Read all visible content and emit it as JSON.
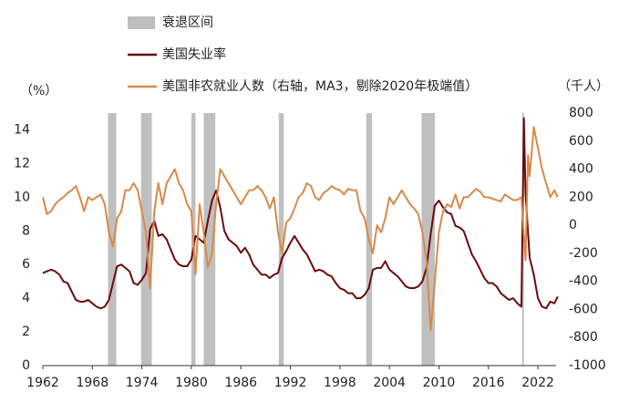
{
  "chart_data": {
    "type": "line",
    "legend": {
      "recession": "衰退区间"
    },
    "ylabel": "（%）",
    "y2label": "（千人）",
    "recessions": [
      [
        1969.9,
        1970.9
      ],
      [
        1973.9,
        1975.2
      ],
      [
        1980.0,
        1980.5
      ],
      [
        1981.5,
        1982.9
      ],
      [
        1990.6,
        1991.2
      ],
      [
        2001.2,
        2001.9
      ],
      [
        2007.9,
        2009.5
      ],
      [
        2020.1,
        2020.3
      ]
    ],
    "recession_color": "#bfbfbf",
    "xlim": [
      1962,
      2024.2
    ],
    "xticks": [
      1962,
      1968,
      1974,
      1980,
      1986,
      1992,
      1998,
      2004,
      2010,
      2016,
      2022
    ],
    "ylim": [
      0,
      15
    ],
    "yticks": [
      0,
      2,
      4,
      6,
      8,
      10,
      12,
      14
    ],
    "y2lim": [
      -1000,
      800
    ],
    "y2ticks": [
      -1000,
      -800,
      -600,
      -400,
      -200,
      0,
      200,
      400,
      600,
      800
    ],
    "series": [
      {
        "name": "美国失业率",
        "color": "#6b0a0a",
        "x": [
          1962,
          1962.5,
          1963,
          1963.5,
          1964,
          1964.5,
          1965,
          1965.5,
          1966,
          1966.5,
          1967,
          1967.5,
          1968,
          1968.5,
          1969,
          1969.5,
          1970,
          1970.5,
          1971,
          1971.5,
          1972,
          1972.5,
          1973,
          1973.5,
          1974,
          1974.5,
          1975,
          1975.5,
          1976,
          1976.5,
          1977,
          1977.5,
          1978,
          1978.5,
          1979,
          1979.5,
          1980,
          1980.5,
          1981,
          1981.5,
          1982,
          1982.5,
          1983,
          1983.5,
          1984,
          1984.5,
          1985,
          1985.5,
          1986,
          1986.5,
          1987,
          1987.5,
          1988,
          1988.5,
          1989,
          1989.5,
          1990,
          1990.5,
          1991,
          1991.5,
          1992,
          1992.5,
          1993,
          1993.5,
          1994,
          1994.5,
          1995,
          1995.5,
          1996,
          1996.5,
          1997,
          1997.5,
          1998,
          1998.5,
          1999,
          1999.5,
          2000,
          2000.5,
          2001,
          2001.5,
          2002,
          2002.5,
          2003,
          2003.5,
          2004,
          2004.5,
          2005,
          2005.5,
          2006,
          2006.5,
          2007,
          2007.5,
          2008,
          2008.5,
          2009,
          2009.5,
          2010,
          2010.5,
          2011,
          2011.5,
          2012,
          2012.5,
          2013,
          2013.5,
          2014,
          2014.5,
          2015,
          2015.5,
          2016,
          2016.5,
          2017,
          2017.5,
          2018,
          2018.5,
          2019,
          2019.5,
          2020,
          2020.3,
          2020.5,
          2021,
          2021.5,
          2022,
          2022.5,
          2023,
          2023.5,
          2024,
          2024.4
        ],
        "values": [
          5.5,
          5.6,
          5.7,
          5.6,
          5.4,
          5.0,
          4.9,
          4.4,
          3.9,
          3.8,
          3.8,
          3.9,
          3.7,
          3.5,
          3.4,
          3.5,
          3.9,
          4.9,
          5.9,
          6.0,
          5.8,
          5.6,
          4.9,
          4.8,
          5.1,
          5.5,
          8.1,
          8.6,
          7.7,
          7.8,
          7.5,
          6.9,
          6.3,
          6.0,
          5.9,
          5.9,
          6.3,
          7.7,
          7.5,
          7.3,
          8.6,
          9.8,
          10.4,
          9.4,
          8.0,
          7.5,
          7.3,
          7.1,
          6.7,
          7.0,
          6.6,
          6.0,
          5.7,
          5.4,
          5.4,
          5.2,
          5.4,
          5.5,
          6.4,
          6.8,
          7.3,
          7.7,
          7.3,
          6.9,
          6.6,
          6.1,
          5.6,
          5.7,
          5.6,
          5.4,
          5.3,
          4.9,
          4.6,
          4.5,
          4.3,
          4.3,
          4.0,
          4.0,
          4.2,
          4.6,
          5.7,
          5.8,
          5.8,
          6.2,
          5.7,
          5.5,
          5.3,
          5.0,
          4.7,
          4.6,
          4.6,
          4.7,
          5.0,
          5.8,
          7.8,
          9.5,
          9.8,
          9.4,
          9.1,
          9.0,
          8.3,
          8.2,
          8.0,
          7.3,
          6.6,
          6.2,
          5.7,
          5.2,
          4.9,
          4.9,
          4.7,
          4.3,
          4.1,
          3.9,
          4.0,
          3.7,
          3.5,
          14.7,
          10.2,
          6.4,
          5.4,
          4.0,
          3.5,
          3.4,
          3.8,
          3.7,
          4.1
        ]
      },
      {
        "name": "美国非农就业人数（右轴，MA3，剔除2020年极端值）",
        "color": "#d9894a",
        "axis": "y2",
        "x": [
          1962,
          1962.5,
          1963,
          1963.5,
          1964,
          1964.5,
          1965,
          1965.5,
          1966,
          1966.5,
          1967,
          1967.5,
          1968,
          1968.5,
          1969,
          1969.5,
          1970,
          1970.5,
          1971,
          1971.5,
          1972,
          1972.5,
          1973,
          1973.5,
          1974,
          1974.5,
          1975,
          1975.5,
          1976,
          1976.5,
          1977,
          1977.5,
          1978,
          1978.5,
          1979,
          1979.5,
          1980,
          1980.5,
          1981,
          1981.5,
          1982,
          1982.5,
          1983,
          1983.5,
          1984,
          1984.5,
          1985,
          1985.5,
          1986,
          1986.5,
          1987,
          1987.5,
          1988,
          1988.5,
          1989,
          1989.5,
          1990,
          1990.5,
          1991,
          1991.5,
          1992,
          1992.5,
          1993,
          1993.5,
          1994,
          1994.5,
          1995,
          1995.5,
          1996,
          1996.5,
          1997,
          1997.5,
          1998,
          1998.5,
          1999,
          1999.5,
          2000,
          2000.5,
          2001,
          2001.5,
          2002,
          2002.5,
          2003,
          2003.5,
          2004,
          2004.5,
          2005,
          2005.5,
          2006,
          2006.5,
          2007,
          2007.5,
          2008,
          2008.5,
          2009,
          2009.5,
          2010,
          2010.5,
          2011,
          2011.5,
          2012,
          2012.5,
          2013,
          2013.5,
          2014,
          2014.5,
          2015,
          2015.5,
          2016,
          2016.5,
          2017,
          2017.5,
          2018,
          2018.5,
          2019,
          2019.5,
          2020,
          2020.5,
          2020.8,
          2021,
          2021.5,
          2022,
          2022.5,
          2023,
          2023.5,
          2024,
          2024.4
        ],
        "values": [
          200,
          80,
          100,
          150,
          180,
          200,
          230,
          250,
          280,
          200,
          100,
          200,
          180,
          200,
          220,
          150,
          -50,
          -150,
          50,
          100,
          250,
          250,
          300,
          250,
          100,
          -50,
          -450,
          100,
          300,
          150,
          300,
          350,
          400,
          300,
          250,
          150,
          100,
          -350,
          150,
          -50,
          -300,
          -200,
          150,
          400,
          350,
          300,
          250,
          200,
          150,
          200,
          250,
          250,
          280,
          250,
          200,
          120,
          200,
          -50,
          -200,
          20,
          50,
          120,
          200,
          230,
          300,
          280,
          200,
          180,
          230,
          250,
          280,
          260,
          250,
          220,
          260,
          250,
          250,
          100,
          50,
          -100,
          -200,
          0,
          -50,
          50,
          200,
          150,
          200,
          250,
          200,
          150,
          120,
          80,
          -50,
          -250,
          -750,
          -400,
          -50,
          100,
          150,
          130,
          220,
          120,
          200,
          200,
          230,
          260,
          240,
          200,
          200,
          190,
          180,
          170,
          220,
          200,
          180,
          180,
          200,
          -250,
          500,
          350,
          700,
          550,
          400,
          300,
          200,
          250,
          200
        ]
      }
    ]
  }
}
